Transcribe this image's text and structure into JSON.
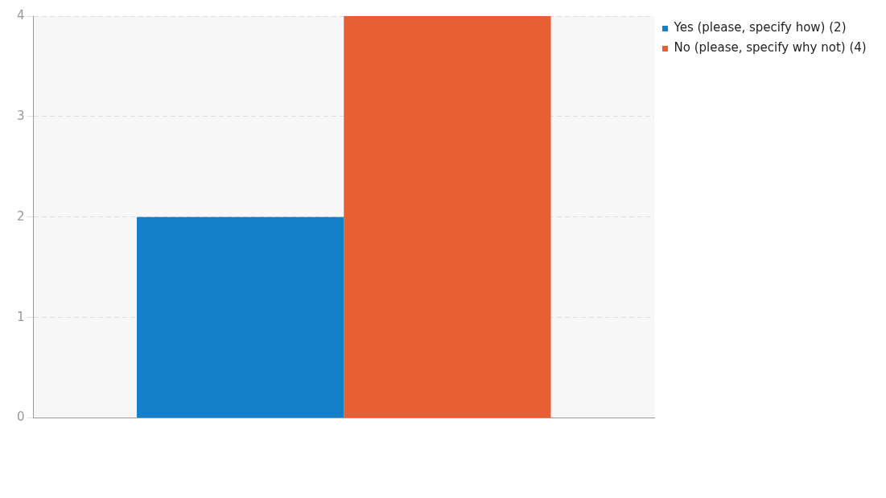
{
  "chart_data": {
    "type": "bar",
    "categories": [
      null
    ],
    "series": [
      {
        "name": "Yes (please, specify how) (2)",
        "color": "#1380c9",
        "values": [
          2
        ]
      },
      {
        "name": "No (please, specify why not) (4)",
        "color": "#e85f33",
        "values": [
          4
        ]
      }
    ],
    "ylim": [
      0,
      4
    ],
    "yticks": [
      0,
      1,
      2,
      3,
      4
    ],
    "grid": "y",
    "legend": "top right"
  }
}
